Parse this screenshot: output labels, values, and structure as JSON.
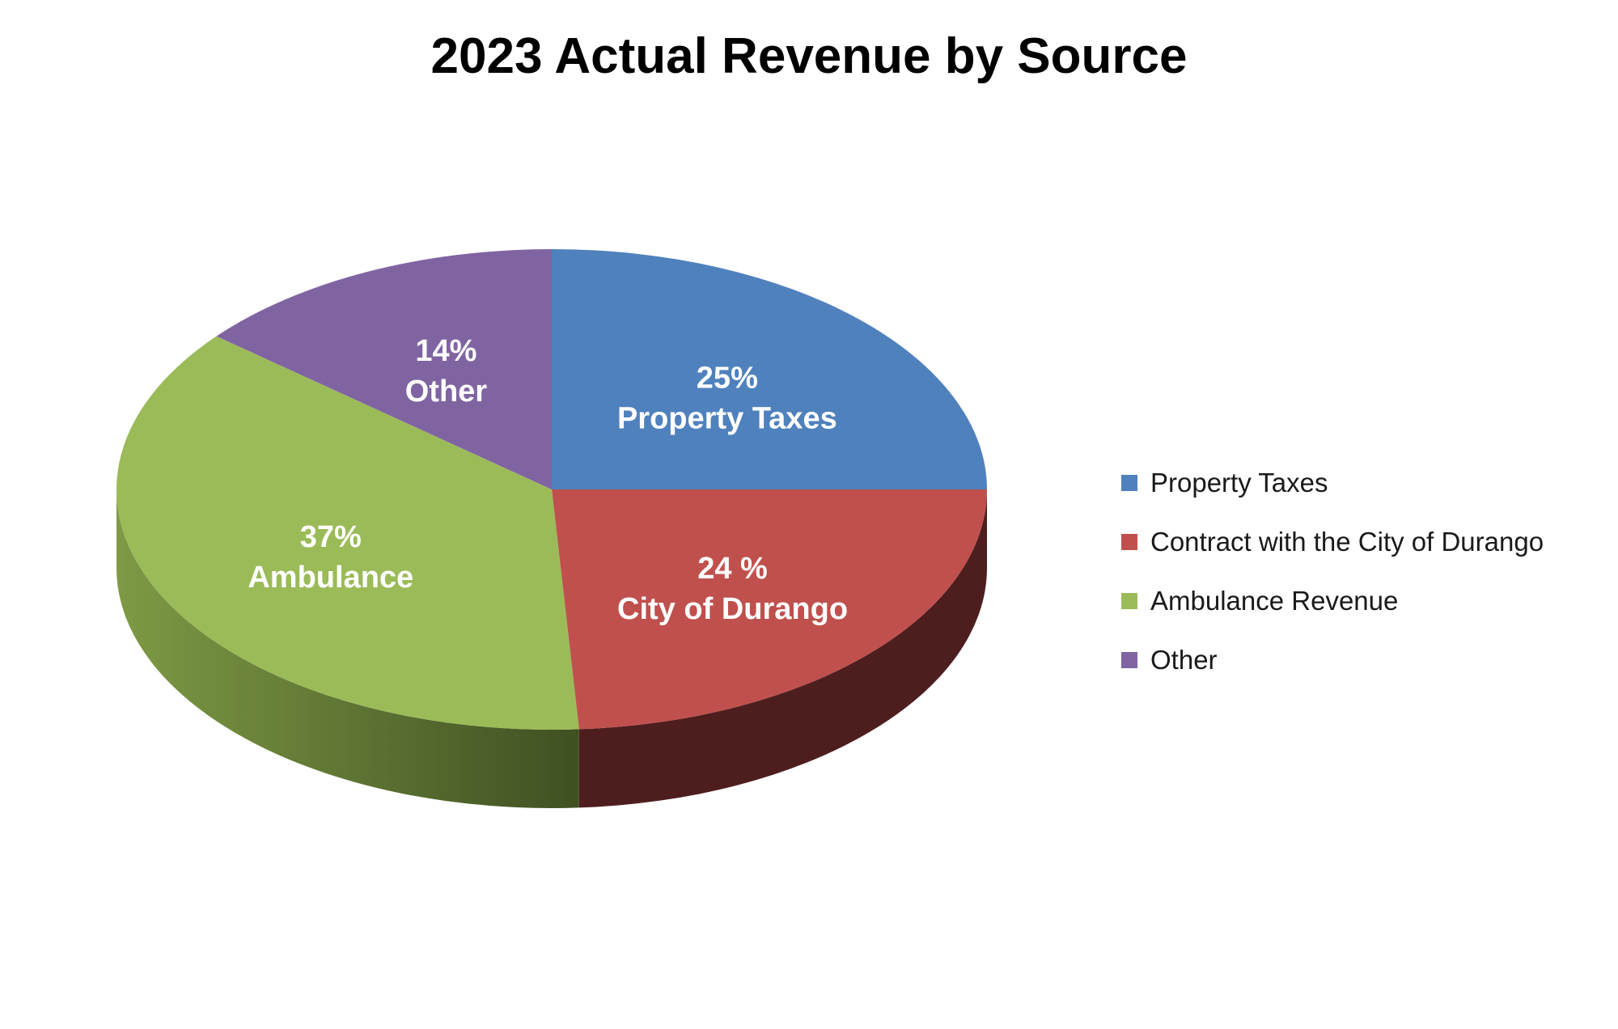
{
  "chart_data": {
    "type": "pie",
    "title": "2023 Actual Revenue by Source",
    "style": "3d",
    "slices": [
      {
        "name": "Property Taxes",
        "value": 25,
        "label_pct": "25%",
        "label_text": "Property Taxes",
        "color": "#4F81BD",
        "side_color": "#2D4A6E"
      },
      {
        "name": "Contract with the City of Durango",
        "value": 24,
        "label_pct": "24 %",
        "label_text": "City of Durango",
        "color": "#C0504D",
        "side_color": "#4E1E1E"
      },
      {
        "name": "Ambulance Revenue",
        "value": 37,
        "label_pct": "37%",
        "label_text": "Ambulance",
        "color": "#9BBB59",
        "side_color": "#5A7033"
      },
      {
        "name": "Other",
        "value": 14,
        "label_pct": "14%",
        "label_text": "Other",
        "color": "#8064A2",
        "side_color": "#4A3A60"
      }
    ],
    "legend_position": "right"
  }
}
